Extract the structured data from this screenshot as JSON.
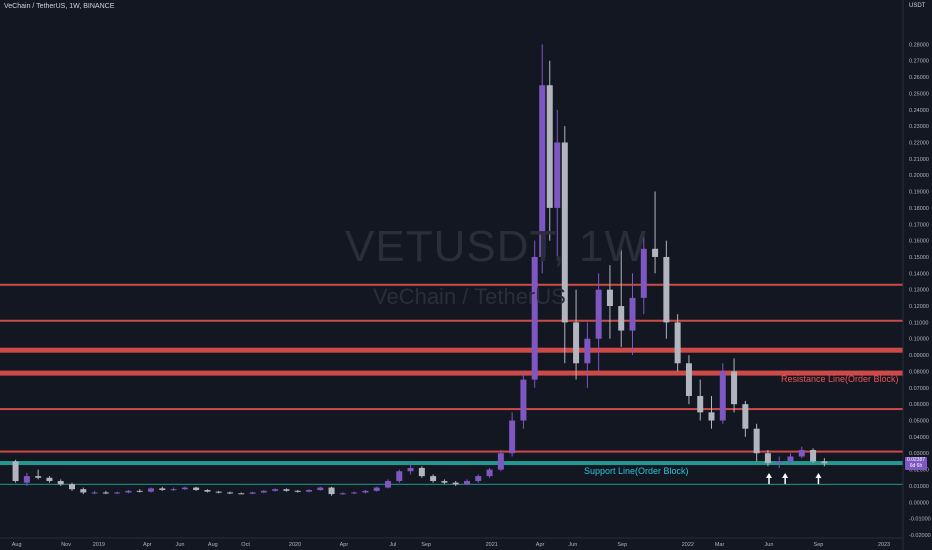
{
  "header": {
    "symbol_line": "VeChain / TetherUS, 1W, BINANCE"
  },
  "unit_label": "USDT",
  "watermark": {
    "ticker": "VETUSDT, 1W",
    "name": "VeChain / TetherUS"
  },
  "annotations": {
    "resistance": "Resistance Line(Order Block)",
    "support": "Support Line(Order Block)"
  },
  "price_tag": {
    "price": "0.02387",
    "countdown": "6d 6h"
  },
  "colors": {
    "background": "#131722",
    "up": "#7e57c2",
    "down": "#b2b5be",
    "resistance": "#ef5350",
    "support": "#26a69a"
  },
  "chart_data": {
    "type": "candlestick",
    "title": "",
    "xlabel": "",
    "ylabel": "",
    "ylim": [
      -0.02,
      0.29
    ],
    "y_ticks": [
      "0.28000",
      "0.27000",
      "0.26000",
      "0.25000",
      "0.24000",
      "0.23000",
      "0.22000",
      "0.21000",
      "0.20000",
      "0.19000",
      "0.18000",
      "0.17000",
      "0.16000",
      "0.15000",
      "0.14000",
      "0.13000",
      "0.12000",
      "0.11000",
      "0.10000",
      "0.09000",
      "0.08000",
      "0.07000",
      "0.06000",
      "0.05000",
      "0.04000",
      "0.03000",
      "0.02000",
      "0.01000",
      "0.00000",
      "-0.01000",
      "-0.02000"
    ],
    "x_ticks": [
      {
        "label": "Aug",
        "date": "2018-08-01"
      },
      {
        "label": "Nov",
        "date": "2018-11-01"
      },
      {
        "label": "2019",
        "date": "2019-01-01"
      },
      {
        "label": "Apr",
        "date": "2019-04-01"
      },
      {
        "label": "Jun",
        "date": "2019-06-01"
      },
      {
        "label": "Aug",
        "date": "2019-08-01"
      },
      {
        "label": "Oct",
        "date": "2019-10-01"
      },
      {
        "label": "2020",
        "date": "2020-01-01"
      },
      {
        "label": "Apr",
        "date": "2020-04-01"
      },
      {
        "label": "Jul",
        "date": "2020-07-01"
      },
      {
        "label": "Sep",
        "date": "2020-09-01"
      },
      {
        "label": "2021",
        "date": "2021-01-01"
      },
      {
        "label": "Apr",
        "date": "2021-04-01"
      },
      {
        "label": "Jun",
        "date": "2021-06-01"
      },
      {
        "label": "Sep",
        "date": "2021-09-01"
      },
      {
        "label": "2022",
        "date": "2022-01-01"
      },
      {
        "label": "Mar",
        "date": "2022-03-01"
      },
      {
        "label": "Jun",
        "date": "2022-06-01"
      },
      {
        "label": "Sep",
        "date": "2022-09-01"
      },
      {
        "label": "2023",
        "date": "2023-01-01"
      }
    ],
    "resistance_levels": [
      0.133,
      0.111,
      0.093,
      0.079,
      0.057,
      0.031
    ],
    "support_levels": [
      0.024,
      0.011
    ],
    "arrows_at": [
      "2022-06-01",
      "2022-07-01",
      "2022-09-01"
    ],
    "series": [
      {
        "date": "2018-07-30",
        "values": [
          0.025,
          0.026,
          0.012,
          0.013
        ]
      },
      {
        "date": "2018-08-20",
        "values": [
          0.012,
          0.018,
          0.01,
          0.016
        ]
      },
      {
        "date": "2018-09-10",
        "values": [
          0.016,
          0.02,
          0.014,
          0.015
        ]
      },
      {
        "date": "2018-10-01",
        "values": [
          0.015,
          0.016,
          0.012,
          0.013
        ]
      },
      {
        "date": "2018-10-22",
        "values": [
          0.013,
          0.014,
          0.01,
          0.011
        ]
      },
      {
        "date": "2018-11-12",
        "values": [
          0.011,
          0.012,
          0.007,
          0.008
        ]
      },
      {
        "date": "2018-12-03",
        "values": [
          0.008,
          0.009,
          0.005,
          0.006
        ]
      },
      {
        "date": "2018-12-24",
        "values": [
          0.006,
          0.007,
          0.005,
          0.006
        ]
      },
      {
        "date": "2019-01-14",
        "values": [
          0.006,
          0.007,
          0.005,
          0.0055
        ]
      },
      {
        "date": "2019-02-04",
        "values": [
          0.0055,
          0.0065,
          0.005,
          0.006
        ]
      },
      {
        "date": "2019-02-25",
        "values": [
          0.006,
          0.0075,
          0.0055,
          0.007
        ]
      },
      {
        "date": "2019-03-18",
        "values": [
          0.007,
          0.008,
          0.006,
          0.0065
        ]
      },
      {
        "date": "2019-04-08",
        "values": [
          0.0065,
          0.009,
          0.006,
          0.0085
        ]
      },
      {
        "date": "2019-04-29",
        "values": [
          0.0085,
          0.0095,
          0.007,
          0.0075
        ]
      },
      {
        "date": "2019-05-20",
        "values": [
          0.0075,
          0.009,
          0.007,
          0.008
        ]
      },
      {
        "date": "2019-06-10",
        "values": [
          0.008,
          0.0095,
          0.0075,
          0.009
        ]
      },
      {
        "date": "2019-07-01",
        "values": [
          0.009,
          0.0095,
          0.007,
          0.0075
        ]
      },
      {
        "date": "2019-07-22",
        "values": [
          0.0075,
          0.008,
          0.006,
          0.0065
        ]
      },
      {
        "date": "2019-08-12",
        "values": [
          0.0065,
          0.007,
          0.0055,
          0.006
        ]
      },
      {
        "date": "2019-09-02",
        "values": [
          0.006,
          0.0065,
          0.005,
          0.0055
        ]
      },
      {
        "date": "2019-09-23",
        "values": [
          0.0055,
          0.006,
          0.005,
          0.0052
        ]
      },
      {
        "date": "2019-10-14",
        "values": [
          0.0052,
          0.0065,
          0.005,
          0.006
        ]
      },
      {
        "date": "2019-11-04",
        "values": [
          0.006,
          0.0075,
          0.0055,
          0.007
        ]
      },
      {
        "date": "2019-11-25",
        "values": [
          0.007,
          0.0085,
          0.0065,
          0.008
        ]
      },
      {
        "date": "2019-12-16",
        "values": [
          0.008,
          0.0085,
          0.0065,
          0.007
        ]
      },
      {
        "date": "2020-01-06",
        "values": [
          0.007,
          0.0075,
          0.006,
          0.0065
        ]
      },
      {
        "date": "2020-01-27",
        "values": [
          0.0065,
          0.008,
          0.006,
          0.0075
        ]
      },
      {
        "date": "2020-02-17",
        "values": [
          0.0075,
          0.0095,
          0.007,
          0.009
        ]
      },
      {
        "date": "2020-03-09",
        "values": [
          0.009,
          0.0095,
          0.004,
          0.005
        ]
      },
      {
        "date": "2020-03-30",
        "values": [
          0.005,
          0.006,
          0.0045,
          0.0055
        ]
      },
      {
        "date": "2020-04-20",
        "values": [
          0.0055,
          0.0065,
          0.005,
          0.006
        ]
      },
      {
        "date": "2020-05-11",
        "values": [
          0.006,
          0.0075,
          0.0055,
          0.007
        ]
      },
      {
        "date": "2020-06-01",
        "values": [
          0.007,
          0.0095,
          0.0065,
          0.009
        ]
      },
      {
        "date": "2020-06-22",
        "values": [
          0.009,
          0.014,
          0.0085,
          0.013
        ]
      },
      {
        "date": "2020-07-13",
        "values": [
          0.013,
          0.02,
          0.012,
          0.019
        ]
      },
      {
        "date": "2020-08-03",
        "values": [
          0.019,
          0.024,
          0.017,
          0.021
        ]
      },
      {
        "date": "2020-08-24",
        "values": [
          0.021,
          0.022,
          0.015,
          0.016
        ]
      },
      {
        "date": "2020-09-14",
        "values": [
          0.016,
          0.017,
          0.012,
          0.013
        ]
      },
      {
        "date": "2020-10-05",
        "values": [
          0.013,
          0.014,
          0.011,
          0.012
        ]
      },
      {
        "date": "2020-10-26",
        "values": [
          0.012,
          0.013,
          0.01,
          0.011
        ]
      },
      {
        "date": "2020-11-16",
        "values": [
          0.011,
          0.014,
          0.0105,
          0.013
        ]
      },
      {
        "date": "2020-12-07",
        "values": [
          0.013,
          0.017,
          0.012,
          0.016
        ]
      },
      {
        "date": "2020-12-28",
        "values": [
          0.016,
          0.021,
          0.015,
          0.02
        ]
      },
      {
        "date": "2021-01-18",
        "values": [
          0.02,
          0.032,
          0.019,
          0.03
        ]
      },
      {
        "date": "2021-02-08",
        "values": [
          0.03,
          0.055,
          0.028,
          0.05
        ]
      },
      {
        "date": "2021-03-01",
        "values": [
          0.05,
          0.08,
          0.045,
          0.075
        ]
      },
      {
        "date": "2021-03-22",
        "values": [
          0.075,
          0.16,
          0.07,
          0.15
        ]
      },
      {
        "date": "2021-04-05",
        "values": [
          0.15,
          0.28,
          0.14,
          0.255
        ]
      },
      {
        "date": "2021-04-19",
        "values": [
          0.255,
          0.27,
          0.16,
          0.18
        ]
      },
      {
        "date": "2021-05-03",
        "values": [
          0.18,
          0.24,
          0.15,
          0.22
        ]
      },
      {
        "date": "2021-05-17",
        "values": [
          0.22,
          0.23,
          0.085,
          0.11
        ]
      },
      {
        "date": "2021-06-07",
        "values": [
          0.11,
          0.13,
          0.075,
          0.085
        ]
      },
      {
        "date": "2021-06-28",
        "values": [
          0.085,
          0.11,
          0.07,
          0.1
        ]
      },
      {
        "date": "2021-07-19",
        "values": [
          0.1,
          0.14,
          0.08,
          0.13
        ]
      },
      {
        "date": "2021-08-09",
        "values": [
          0.13,
          0.145,
          0.1,
          0.12
        ]
      },
      {
        "date": "2021-08-30",
        "values": [
          0.12,
          0.155,
          0.095,
          0.105
        ]
      },
      {
        "date": "2021-09-20",
        "values": [
          0.105,
          0.14,
          0.09,
          0.125
        ]
      },
      {
        "date": "2021-10-11",
        "values": [
          0.125,
          0.165,
          0.115,
          0.155
        ]
      },
      {
        "date": "2021-11-01",
        "values": [
          0.155,
          0.19,
          0.14,
          0.15
        ]
      },
      {
        "date": "2021-11-22",
        "values": [
          0.15,
          0.16,
          0.1,
          0.11
        ]
      },
      {
        "date": "2021-12-13",
        "values": [
          0.11,
          0.115,
          0.08,
          0.085
        ]
      },
      {
        "date": "2022-01-03",
        "values": [
          0.085,
          0.09,
          0.06,
          0.065
        ]
      },
      {
        "date": "2022-01-24",
        "values": [
          0.065,
          0.075,
          0.05,
          0.055
        ]
      },
      {
        "date": "2022-02-14",
        "values": [
          0.055,
          0.065,
          0.045,
          0.05
        ]
      },
      {
        "date": "2022-03-07",
        "values": [
          0.05,
          0.085,
          0.048,
          0.08
        ]
      },
      {
        "date": "2022-03-28",
        "values": [
          0.08,
          0.088,
          0.055,
          0.06
        ]
      },
      {
        "date": "2022-04-18",
        "values": [
          0.06,
          0.062,
          0.04,
          0.045
        ]
      },
      {
        "date": "2022-05-09",
        "values": [
          0.045,
          0.048,
          0.025,
          0.03
        ]
      },
      {
        "date": "2022-05-30",
        "values": [
          0.03,
          0.032,
          0.022,
          0.024
        ]
      },
      {
        "date": "2022-06-20",
        "values": [
          0.024,
          0.028,
          0.021,
          0.025
        ]
      },
      {
        "date": "2022-07-11",
        "values": [
          0.025,
          0.03,
          0.023,
          0.028
        ]
      },
      {
        "date": "2022-08-01",
        "values": [
          0.028,
          0.034,
          0.027,
          0.032
        ]
      },
      {
        "date": "2022-08-22",
        "values": [
          0.032,
          0.033,
          0.024,
          0.025
        ]
      },
      {
        "date": "2022-09-12",
        "values": [
          0.025,
          0.027,
          0.022,
          0.0239
        ]
      }
    ]
  }
}
